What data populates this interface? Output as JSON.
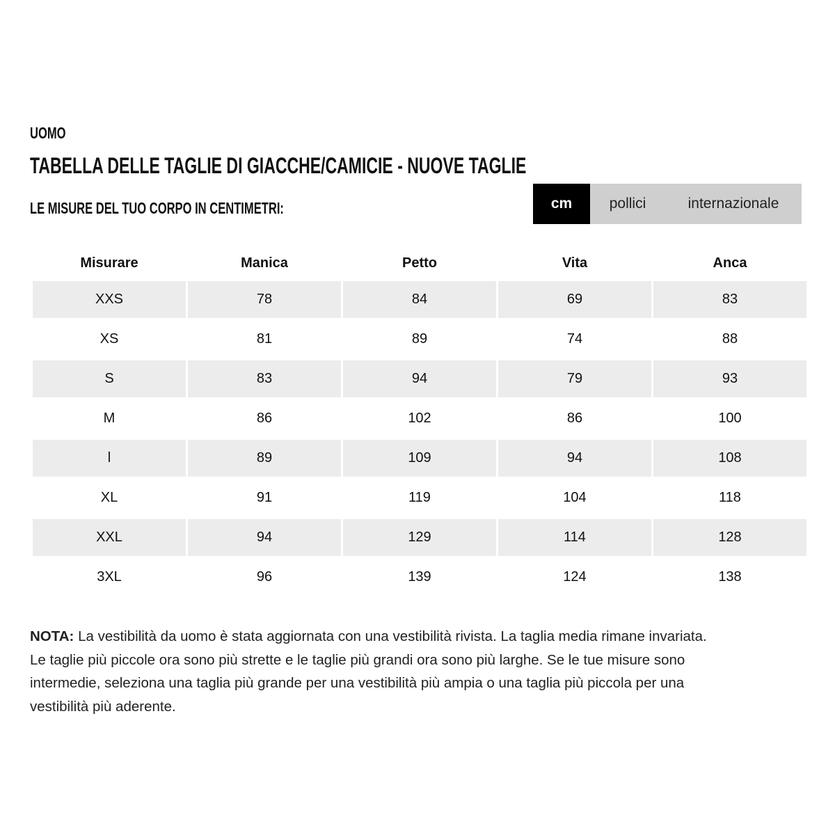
{
  "section": "UOMO",
  "title": "TABELLA DELLE TAGLIE DI GIACCHE/CAMICIE - NUOVE TAGLIE",
  "subtitle": "LE MISURE DEL TUO CORPO IN CENTIMETRI:",
  "units": {
    "selected": "cm",
    "options": [
      "cm",
      "pollici",
      "internazionale"
    ]
  },
  "table": {
    "headers": [
      "Misurare",
      "Manica",
      "Petto",
      "Vita",
      "Anca"
    ],
    "rows": [
      [
        "XXS",
        "78",
        "84",
        "69",
        "83"
      ],
      [
        "XS",
        "81",
        "89",
        "74",
        "88"
      ],
      [
        "S",
        "83",
        "94",
        "79",
        "93"
      ],
      [
        "M",
        "86",
        "102",
        "86",
        "100"
      ],
      [
        "l",
        "89",
        "109",
        "94",
        "108"
      ],
      [
        "XL",
        "91",
        "119",
        "104",
        "118"
      ],
      [
        "XXL",
        "94",
        "129",
        "114",
        "128"
      ],
      [
        "3XL",
        "96",
        "139",
        "124",
        "138"
      ]
    ]
  },
  "note": {
    "label": "NOTA:",
    "text": " La vestibilità da uomo è stata aggiornata con una vestibilità rivista. La taglia media rimane invariata. Le taglie più piccole ora sono più strette e le taglie più grandi ora sono più larghe. Se le tue misure sono intermedie, seleziona una taglia più grande per una vestibilità più ampia o una taglia più piccola per una vestibilità più aderente."
  },
  "colors": {
    "active_tab": "#000000",
    "tab_bg": "#cfcfcf",
    "row_shade": "#ececec"
  }
}
